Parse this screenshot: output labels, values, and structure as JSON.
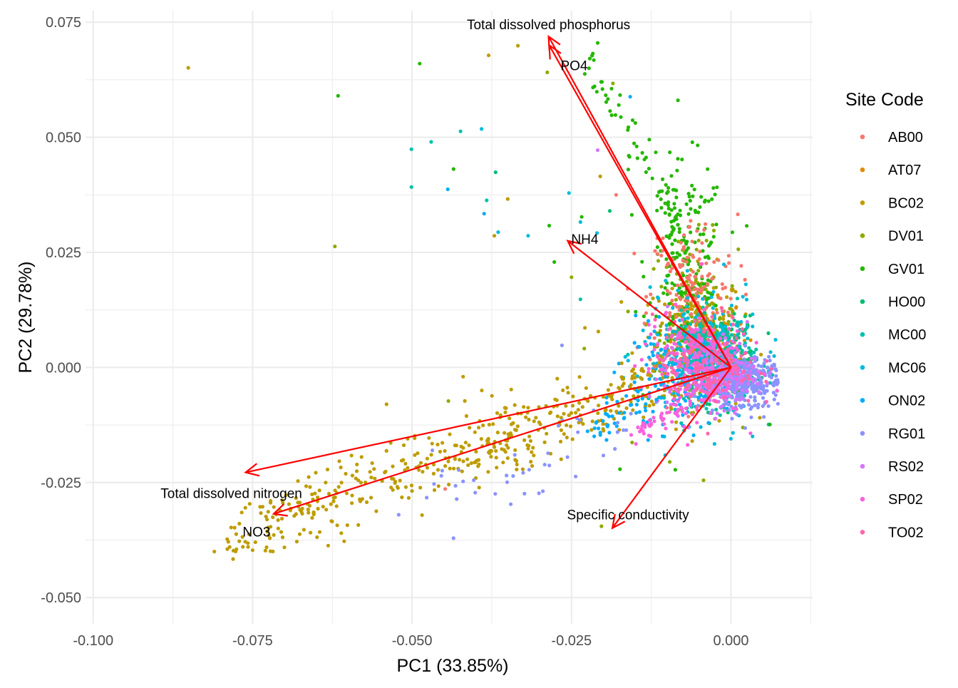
{
  "chart_data": {
    "type": "scatter",
    "subtype": "pca-biplot",
    "xlabel": "PC1 (33.85%)",
    "ylabel": "PC2 (29.78%)",
    "xlim": [
      -0.1012,
      0.0128
    ],
    "ylim": [
      -0.0557,
      0.0775
    ],
    "x_ticks": [
      -0.1,
      -0.075,
      -0.05,
      -0.025,
      0.0
    ],
    "x_tick_labels": [
      "-0.100",
      "-0.075",
      "-0.050",
      "-0.025",
      "0.000"
    ],
    "y_ticks": [
      -0.05,
      -0.025,
      0.0,
      0.025,
      0.05,
      0.075
    ],
    "y_tick_labels": [
      "-0.050",
      "-0.025",
      "0.000",
      "0.025",
      "0.050",
      "0.075"
    ],
    "grid": true,
    "legend": {
      "title": "Site Code",
      "placement": "right",
      "entries": [
        {
          "label": "AB00",
          "color": "#F8766D"
        },
        {
          "label": "AT07",
          "color": "#E18A00"
        },
        {
          "label": "BC02",
          "color": "#BE9C00"
        },
        {
          "label": "DV01",
          "color": "#8CAB00"
        },
        {
          "label": "GV01",
          "color": "#24B700"
        },
        {
          "label": "HO00",
          "color": "#00BE70"
        },
        {
          "label": "MC00",
          "color": "#00C1AB"
        },
        {
          "label": "MC06",
          "color": "#00BBDA"
        },
        {
          "label": "ON02",
          "color": "#00ACFC"
        },
        {
          "label": "RG01",
          "color": "#8B93FF"
        },
        {
          "label": "RS02",
          "color": "#D575FE"
        },
        {
          "label": "SP02",
          "color": "#F962DD"
        },
        {
          "label": "TO02",
          "color": "#FF65AC"
        }
      ]
    },
    "arrow_color": "#ff0000",
    "loadings": [
      {
        "label": "Total dissolved phosphorus",
        "x": -0.0286,
        "y": 0.0719
      },
      {
        "label": "PO4",
        "x": -0.0285,
        "y": 0.07
      },
      {
        "label": "NH4",
        "x": -0.0256,
        "y": 0.0275
      },
      {
        "label": "Total dissolved nitrogen",
        "x": -0.0761,
        "y": -0.0228
      },
      {
        "label": "NO3",
        "x": -0.0717,
        "y": -0.0318
      },
      {
        "label": "Specific conductivity",
        "x": -0.0186,
        "y": -0.0349
      }
    ],
    "points": [
      {
        "site": "BC02",
        "x": -0.0851,
        "y": 0.0651
      },
      {
        "site": "GV01",
        "x": -0.0616,
        "y": 0.059
      },
      {
        "site": "DV01",
        "x": -0.0621,
        "y": 0.0263
      },
      {
        "site": "GV01",
        "x": -0.0488,
        "y": 0.066
      },
      {
        "site": "BC02",
        "x": -0.038,
        "y": 0.0678
      },
      {
        "site": "BC02",
        "x": -0.0334,
        "y": 0.0699
      },
      {
        "site": "DV01",
        "x": -0.0288,
        "y": 0.0641
      },
      {
        "site": "GV01",
        "x": -0.0209,
        "y": 0.0705
      },
      {
        "site": "MC00",
        "x": -0.0424,
        "y": 0.0513
      },
      {
        "site": "MC06",
        "x": -0.0391,
        "y": 0.0518
      },
      {
        "site": "MC00",
        "x": -0.047,
        "y": 0.049
      },
      {
        "site": "MC00",
        "x": -0.0501,
        "y": 0.0474
      },
      {
        "site": "GV01",
        "x": -0.0435,
        "y": 0.0431
      },
      {
        "site": "HO00",
        "x": -0.0369,
        "y": 0.0424
      },
      {
        "site": "MC00",
        "x": -0.0501,
        "y": 0.0392
      },
      {
        "site": "ON02",
        "x": -0.0444,
        "y": 0.0387
      },
      {
        "site": "MC00",
        "x": -0.0383,
        "y": 0.0363
      },
      {
        "site": "BC02",
        "x": -0.035,
        "y": 0.0366
      },
      {
        "site": "ON02",
        "x": -0.0387,
        "y": 0.0334
      },
      {
        "site": "BC02",
        "x": -0.0371,
        "y": 0.0286
      },
      {
        "site": "MC06",
        "x": -0.0365,
        "y": 0.0294
      },
      {
        "site": "MC06",
        "x": -0.0318,
        "y": 0.0286
      },
      {
        "site": "GV01",
        "x": -0.0285,
        "y": 0.0308
      },
      {
        "site": "MC06",
        "x": -0.0254,
        "y": 0.0379
      },
      {
        "site": "GV01",
        "x": -0.0277,
        "y": 0.0229
      },
      {
        "site": "DV01",
        "x": -0.025,
        "y": 0.0196
      },
      {
        "site": "GV01",
        "x": -0.0234,
        "y": 0.0327
      },
      {
        "site": "MC06",
        "x": -0.0236,
        "y": 0.0316
      },
      {
        "site": "MC06",
        "x": -0.021,
        "y": 0.0292
      },
      {
        "site": "HO00",
        "x": -0.019,
        "y": 0.034
      },
      {
        "site": "ON02",
        "x": -0.0158,
        "y": 0.0588
      },
      {
        "site": "RS02",
        "x": -0.0209,
        "y": 0.0472
      },
      {
        "site": "DV01",
        "x": -0.0185,
        "y": 0.0617
      },
      {
        "site": "GV01",
        "x": -0.015,
        "y": 0.0531
      },
      {
        "site": "GV01",
        "x": -0.0128,
        "y": 0.0495
      },
      {
        "site": "BC02",
        "x": -0.0205,
        "y": 0.0415
      },
      {
        "site": "AB00",
        "x": -0.018,
        "y": 0.0375
      },
      {
        "site": "GV01",
        "x": -0.0161,
        "y": 0.043
      },
      {
        "site": "MC00",
        "x": -0.0236,
        "y": 0.0148
      },
      {
        "site": "BC02",
        "x": -0.0229,
        "y": 0.0086
      },
      {
        "site": "DV01",
        "x": -0.023,
        "y": 0.0041
      },
      {
        "site": "RG01",
        "x": -0.0265,
        "y": 0.0048
      },
      {
        "site": "BC02",
        "x": -0.0208,
        "y": 0.0078
      },
      {
        "site": "BC02",
        "x": -0.054,
        "y": -0.008
      },
      {
        "site": "DV01",
        "x": -0.0443,
        "y": -0.0073
      },
      {
        "site": "BC02",
        "x": -0.042,
        "y": -0.002
      },
      {
        "site": "BC02",
        "x": -0.081,
        "y": -0.04
      },
      {
        "site": "BC02",
        "x": -0.0786,
        "y": -0.039
      },
      {
        "site": "BC02",
        "x": -0.075,
        "y": -0.0397
      },
      {
        "site": "BC02",
        "x": -0.073,
        "y": -0.0398
      },
      {
        "site": "BC02",
        "x": -0.0703,
        "y": -0.0369
      },
      {
        "site": "BC02",
        "x": -0.0611,
        "y": -0.036
      },
      {
        "site": "RG01",
        "x": -0.0521,
        "y": -0.032
      },
      {
        "site": "AB00",
        "x": -0.0448,
        "y": -0.0264
      },
      {
        "site": "RG01",
        "x": -0.0401,
        "y": -0.0272
      },
      {
        "site": "RG01",
        "x": -0.043,
        "y": -0.0286
      },
      {
        "site": "GV01",
        "x": -0.0174,
        "y": -0.0221
      },
      {
        "site": "DV01",
        "x": -0.0155,
        "y": -0.0163
      },
      {
        "site": "DV01",
        "x": -0.0043,
        "y": -0.0245
      },
      {
        "site": "ON02",
        "x": 0.0059,
        "y": -0.0124
      },
      {
        "site": "GV01",
        "x": 0.0061,
        "y": -0.0124
      },
      {
        "site": "DV01",
        "x": -0.0203,
        "y": -0.0345
      }
    ],
    "point_clouds": [
      {
        "site": "BC02",
        "cx": -0.005,
        "cy": 0.005,
        "sx": 0.0035,
        "sy": 0.008,
        "n": 230
      },
      {
        "site": "DV01",
        "cx": -0.006,
        "cy": 0.01,
        "sx": 0.0035,
        "sy": 0.009,
        "n": 130
      },
      {
        "site": "GV01",
        "cx": -0.007,
        "cy": 0.022,
        "sx": 0.003,
        "sy": 0.011,
        "n": 190
      },
      {
        "site": "AB00",
        "cx": -0.006,
        "cy": 0.015,
        "sx": 0.0035,
        "sy": 0.009,
        "n": 170
      },
      {
        "site": "AT07",
        "cx": -0.004,
        "cy": 0.004,
        "sx": 0.003,
        "sy": 0.005,
        "n": 90
      },
      {
        "site": "HO00",
        "cx": -0.002,
        "cy": 0.002,
        "sx": 0.003,
        "sy": 0.0045,
        "n": 220
      },
      {
        "site": "MC00",
        "cx": -0.003,
        "cy": 0.002,
        "sx": 0.0035,
        "sy": 0.005,
        "n": 220
      },
      {
        "site": "MC06",
        "cx": -0.005,
        "cy": 0.002,
        "sx": 0.0045,
        "sy": 0.007,
        "n": 200
      },
      {
        "site": "ON02",
        "cx": -0.009,
        "cy": -0.003,
        "sx": 0.004,
        "sy": 0.005,
        "n": 120
      },
      {
        "site": "RG01",
        "cx": 0.002,
        "cy": -0.003,
        "sx": 0.003,
        "sy": 0.003,
        "n": 330
      },
      {
        "site": "RS02",
        "cx": -0.003,
        "cy": -0.001,
        "sx": 0.0035,
        "sy": 0.004,
        "n": 230
      },
      {
        "site": "SP02",
        "cx": -0.006,
        "cy": 0.001,
        "sx": 0.004,
        "sy": 0.006,
        "n": 170
      },
      {
        "site": "TO02",
        "cx": -0.004,
        "cy": 0.001,
        "sx": 0.004,
        "sy": 0.005,
        "n": 170
      }
    ],
    "bands": [
      {
        "site": "BC02",
        "from": [
          -0.079,
          -0.037
        ],
        "to": [
          -0.011,
          -0.003
        ],
        "spread": 0.0035,
        "n": 360
      },
      {
        "site": "BC02",
        "from": [
          -0.042,
          -0.017
        ],
        "to": [
          -0.01,
          -0.004
        ],
        "spread": 0.004,
        "n": 90
      },
      {
        "site": "RG01",
        "from": [
          -0.048,
          -0.03
        ],
        "to": [
          -0.015,
          -0.013
        ],
        "spread": 0.0035,
        "n": 40
      },
      {
        "site": "ON02",
        "from": [
          -0.022,
          -0.014
        ],
        "to": [
          -0.012,
          -0.006
        ],
        "spread": 0.002,
        "n": 40
      },
      {
        "site": "SP02",
        "from": [
          -0.015,
          -0.014
        ],
        "to": [
          -0.007,
          -0.008
        ],
        "spread": 0.0012,
        "n": 45
      },
      {
        "site": "GV01",
        "from": [
          -0.023,
          0.068
        ],
        "to": [
          -0.008,
          0.03
        ],
        "spread": 0.0015,
        "n": 60
      }
    ]
  }
}
